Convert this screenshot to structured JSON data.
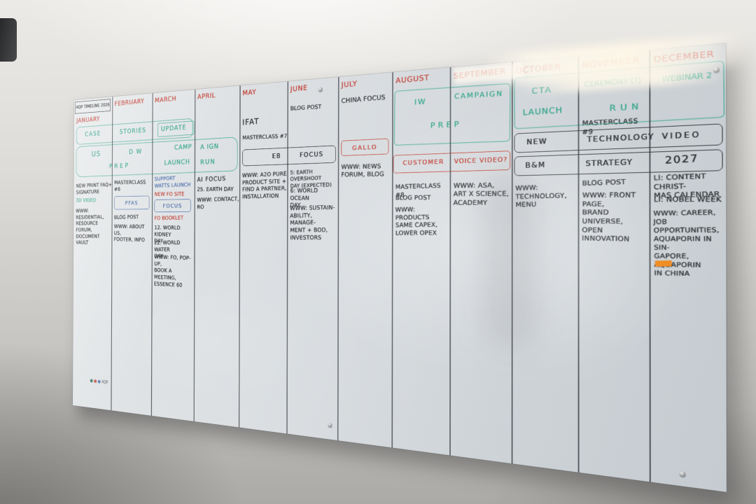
{
  "palette": {
    "red_marker": "#c2473c",
    "green_marker": "#3ba78e",
    "blue_marker": "#5071ad",
    "black_marker": "#34373a",
    "orange_tab": "#f08a1d"
  },
  "title": "AQP TIMELINE 2026",
  "brand": {
    "mark": "AQP"
  },
  "bands": {
    "case_band": {
      "case": "CASE",
      "stories": "STORIES",
      "update": "UPDATE"
    },
    "prep_band": {
      "us": "US",
      "dw": "D W",
      "camp": "CAMP",
      "aign": "A IGN",
      "prep": "PREP",
      "launch": "LAUNCH",
      "run": "RUN"
    },
    "aug_band": {
      "iw": "IW",
      "campaign": "CAMPAIGN",
      "prep": "PREP"
    },
    "customer_band": {
      "customer": "CUSTOMER",
      "voice": "VOICE VIDEO?"
    },
    "oct_band": {
      "cta": "CTA",
      "ceremony": "CEREMONY (?)",
      "webinar": "WEBINAR 2",
      "launch": "LAUNCH",
      "run": "RUN"
    },
    "new_band": {
      "new": "NEW",
      "technology": "TECHNOLOGY",
      "video": "VIDEO"
    },
    "bm_band": {
      "bm": "B&M",
      "strategy": "STRATEGY",
      "y2027": "2027"
    },
    "eb_band": {
      "eb": "EB",
      "focus": "FOCUS"
    },
    "gallo": "GALLO",
    "pfas": "PFAS",
    "focus_mar": "FOCUS"
  },
  "months": [
    {
      "name": "JANUARY",
      "notes": [
        "NEW PRINT FAQ+\nSIGNATURE",
        "3D VIDEO",
        "WWW: RESIDENTIAL,\nRESOURCE FORUM,\nDOCUMENT VAULT"
      ]
    },
    {
      "name": "FEBRUARY",
      "notes": [
        "MASTERCLASS #6",
        "BLOG POST",
        "WWW: ABOUT US,\nFOOTER, INFO"
      ]
    },
    {
      "name": "MARCH",
      "notes": [
        "SUPPORT\nWATTS LAUNCH",
        "NEW FO SITE",
        "FO BOOKLET",
        "12. WORLD KIDNEY\nDAY",
        "22. WORLD WATER\nDAY",
        "WWW: FO, POP-UP,\nBOOK A MEETING,\nESSENCE 60"
      ]
    },
    {
      "name": "APRIL",
      "notes": [
        "AI FOCUS",
        "25. EARTH DAY",
        "WWW: CONTACT,\nRO"
      ]
    },
    {
      "name": "MAY",
      "notes": [
        "IFAT",
        "MASTERCLASS #7",
        "WWW: A2O PURE\nPRODUCT SITE +\nFIND A PARTNER,\nINSTALLATION"
      ]
    },
    {
      "name": "JUNE",
      "notes": [
        "BLOG POST",
        "5: EARTH OVERSHOOT\nDAY (EXPECTED)",
        "6: WORLD OCEAN\nDAY",
        "WWW: SUSTAIN-\nABILITY, MANAGE-\nMENT + BOD,\nINVESTORS"
      ]
    },
    {
      "name": "JULY",
      "notes": [
        "CHINA FOCUS",
        "WWW: NEWS\nFORUM, BLOG"
      ]
    },
    {
      "name": "AUGUST",
      "notes": [
        "MASTERCLASS #8",
        "BLOG POST",
        "WWW: PRODUCTS\nSAME CAPEX,\nLOWER OPEX"
      ]
    },
    {
      "name": "SEPTEMBER",
      "notes": [
        "WWW: ASA,\nART X SCIENCE,\nACADEMY"
      ]
    },
    {
      "name": "OCTOBER",
      "notes": [
        "WWW: TECHNOLOGY,\nMENU"
      ]
    },
    {
      "name": "NOVEMBER",
      "notes": [
        "MASTERCLASS #9",
        "BLOG POST",
        "WWW: FRONT PAGE,\nBRAND UNIVERSE,\nOPEN INNOVATION"
      ]
    },
    {
      "name": "DECEMBER",
      "notes": [
        "LI: CONTENT CHRIST-\nMAS CALENDAR",
        "LI: NOBEL WEEK",
        "WWW: CAREER,\nJOB OPPORTUNITIES,\nAQUAPORIN IN SIN-\nGAPORE, AQUAPORIN\nIN CHINA"
      ]
    }
  ]
}
